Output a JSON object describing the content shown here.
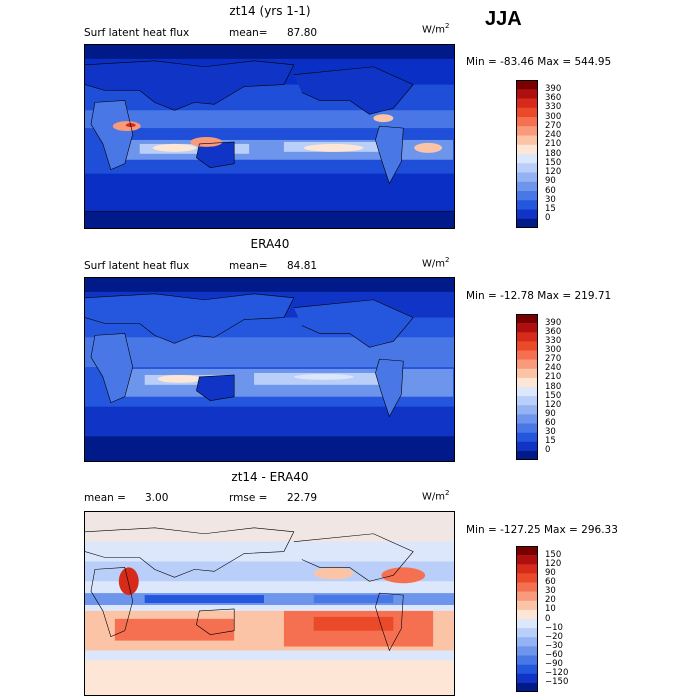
{
  "season": "JJA",
  "panels": [
    {
      "id": "model",
      "title": "zt14 (yrs 1-1)",
      "left_label": "Surf latent heat flux",
      "stat1_label": "mean=",
      "stat1_value": "87.80",
      "stat2_label": "",
      "stat2_value": "",
      "unit_main": "W/m",
      "unit_exp": "2",
      "minmax": "Min = -83.46  Max = 544.95",
      "colorbar": {
        "labels": [
          "390",
          "360",
          "330",
          "300",
          "270",
          "240",
          "210",
          "180",
          "150",
          "120",
          "90",
          "60",
          "30",
          "15",
          "0"
        ],
        "colors": [
          "#7a0000",
          "#b00f0f",
          "#d62a1a",
          "#ea4a2a",
          "#f57050",
          "#f99a7a",
          "#fcc4a6",
          "#fde6d6",
          "#dde7fb",
          "#b9cef8",
          "#93b3f3",
          "#6e95ec",
          "#4977e6",
          "#2457dd",
          "#1035c6",
          "#001a8a"
        ]
      }
    },
    {
      "id": "obs",
      "title": "ERA40",
      "left_label": "Surf latent heat flux",
      "stat1_label": "mean=",
      "stat1_value": "84.81",
      "stat2_label": "",
      "stat2_value": "",
      "unit_main": "W/m",
      "unit_exp": "2",
      "minmax": "Min = -12.78  Max = 219.71",
      "colorbar": {
        "labels": [
          "390",
          "360",
          "330",
          "300",
          "270",
          "240",
          "210",
          "180",
          "150",
          "120",
          "90",
          "60",
          "30",
          "15",
          "0"
        ],
        "colors": [
          "#7a0000",
          "#b00f0f",
          "#d62a1a",
          "#ea4a2a",
          "#f57050",
          "#f99a7a",
          "#fcc4a6",
          "#fde6d6",
          "#dde7fb",
          "#b9cef8",
          "#93b3f3",
          "#6e95ec",
          "#4977e6",
          "#2457dd",
          "#1035c6",
          "#001a8a"
        ]
      }
    },
    {
      "id": "diff",
      "title": "zt14 - ERA40",
      "left_label": "",
      "stat1_label": "mean =",
      "stat1_value": "3.00",
      "stat2_label": "rmse =",
      "stat2_value": "22.79",
      "unit_main": "W/m",
      "unit_exp": "2",
      "minmax": "Min = -127.25  Max = 296.33",
      "colorbar": {
        "labels": [
          "150",
          "120",
          "90",
          "60",
          "30",
          "20",
          "10",
          "0",
          "−10",
          "−20",
          "−30",
          "−60",
          "−90",
          "−120",
          "−150"
        ],
        "colors": [
          "#7a0000",
          "#b00f0f",
          "#d62a1a",
          "#ea4a2a",
          "#f57050",
          "#f99a7a",
          "#fcc4a6",
          "#fde6d6",
          "#dde7fb",
          "#b9cef8",
          "#93b3f3",
          "#6e95ec",
          "#4977e6",
          "#2457dd",
          "#1035c6",
          "#001a8a"
        ]
      }
    }
  ],
  "chart_data": [
    {
      "type": "heatmap",
      "title": "zt14 (yrs 1-1)",
      "quantity": "Surf latent heat flux",
      "units": "W/m2",
      "mean": 87.8,
      "min": -83.46,
      "max": 544.95,
      "contour_levels": [
        0,
        15,
        30,
        60,
        90,
        120,
        150,
        180,
        210,
        240,
        270,
        300,
        330,
        360,
        390
      ]
    },
    {
      "type": "heatmap",
      "title": "ERA40",
      "quantity": "Surf latent heat flux",
      "units": "W/m2",
      "mean": 84.81,
      "min": -12.78,
      "max": 219.71,
      "contour_levels": [
        0,
        15,
        30,
        60,
        90,
        120,
        150,
        180,
        210,
        240,
        270,
        300,
        330,
        360,
        390
      ]
    },
    {
      "type": "heatmap",
      "title": "zt14 - ERA40",
      "units": "W/m2",
      "mean": 3.0,
      "rmse": 22.79,
      "min": -127.25,
      "max": 296.33,
      "contour_levels": [
        -150,
        -120,
        -90,
        -60,
        -30,
        -20,
        -10,
        0,
        10,
        20,
        30,
        60,
        90,
        120,
        150
      ]
    }
  ]
}
